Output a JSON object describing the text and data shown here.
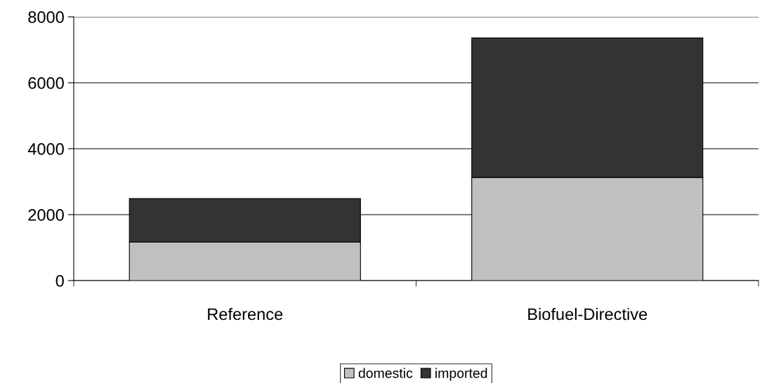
{
  "chart_data": {
    "type": "bar",
    "stacked": true,
    "categories": [
      "Reference",
      "Biofuel-Directive"
    ],
    "series": [
      {
        "name": "domestic",
        "color": "#c0c0c0",
        "values": [
          1170,
          3130
        ]
      },
      {
        "name": "imported",
        "color": "#333333",
        "values": [
          1320,
          4230
        ]
      }
    ],
    "ylim": [
      0,
      8000
    ],
    "yticks": [
      0,
      2000,
      4000,
      6000,
      8000
    ],
    "grid": "y",
    "legend": "bottom"
  }
}
